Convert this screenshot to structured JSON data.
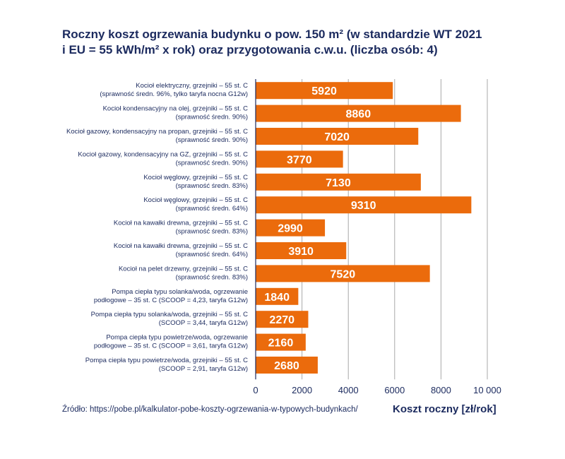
{
  "title_line1": "Roczny koszt ogrzewania budynku o pow. 150 m² (w standardzie WT 2021",
  "title_line2": "i EU = 55 kWh/m² x rok) oraz przygotowania c.w.u. (liczba osób: 4)",
  "source": "Źródło: https://pobe.pl/kalkulator-pobe-koszty-ogrzewania-w-typowych-budynkach/",
  "colors": {
    "bar": "#eb6b0c",
    "text": "#1b2a5e",
    "grid": "#a9a9a9",
    "bar_label": "#ffffff"
  },
  "chart_data": {
    "type": "bar",
    "orientation": "horizontal",
    "title": "Roczny koszt ogrzewania budynku o pow. 150 m² (w standardzie WT 2021 i EU = 55 kWh/m² x rok) oraz przygotowania c.w.u. (liczba osób: 4)",
    "xlabel": "Koszt roczny [zł/rok]",
    "ylabel": "",
    "xlim": [
      0,
      10000
    ],
    "xticks": [
      "0",
      "2000",
      "4000",
      "6000",
      "8000",
      "10 000"
    ],
    "xtick_values": [
      0,
      2000,
      4000,
      6000,
      8000,
      10000
    ],
    "grid": "vertical",
    "categories": [
      [
        "Kocioł elektryczny, grzejniki – 55 st. C",
        "(sprawność średn. 96%, tylko taryfa nocna G12w)"
      ],
      [
        "Kocioł kondensacyjny na olej, grzejniki – 55 st. C",
        "(sprawność średn. 90%)"
      ],
      [
        "Kocioł gazowy, kondensacyjny na propan, grzejniki – 55 st. C",
        "(sprawność średn. 90%)"
      ],
      [
        "Kocioł gazowy, kondensacyjny na GZ, grzejniki – 55 st. C",
        "(sprawność średn. 90%)"
      ],
      [
        "Kocioł węglowy, grzejniki – 55 st. C",
        "(sprawność średn. 83%)"
      ],
      [
        "Kocioł węglowy, grzejniki – 55 st. C",
        "(sprawność średn. 64%)"
      ],
      [
        "Kocioł na kawałki drewna, grzejniki – 55 st. C",
        "(sprawność średn. 83%)"
      ],
      [
        "Kocioł na kawałki drewna, grzejniki – 55 st. C",
        "(sprawność średn. 64%)"
      ],
      [
        "Kocioł na pelet drzewny, grzejniki – 55 st. C",
        "(sprawność średn. 83%)"
      ],
      [
        "Pompa ciepła typu solanka/woda, ogrzewanie",
        "podłogowe – 35 st. C (SCOOP = 4,23, taryfa G12w)"
      ],
      [
        "Pompa ciepła typu solanka/woda, grzejniki – 55 st. C",
        "(SCOOP = 3,44, taryfa G12w)"
      ],
      [
        "Pompa ciepła typu powietrze/woda, ogrzewanie",
        "podłogowe – 35 st. C (SCOOP = 3,61, taryfa G12w)"
      ],
      [
        "Pompa ciepła typu powietrze/woda, grzejniki – 55 st. C",
        "(SCOOP = 2,91, taryfa G12w)"
      ]
    ],
    "values": [
      5920,
      8860,
      7020,
      3770,
      7130,
      9310,
      2990,
      3910,
      7520,
      1840,
      2270,
      2160,
      2680
    ]
  }
}
